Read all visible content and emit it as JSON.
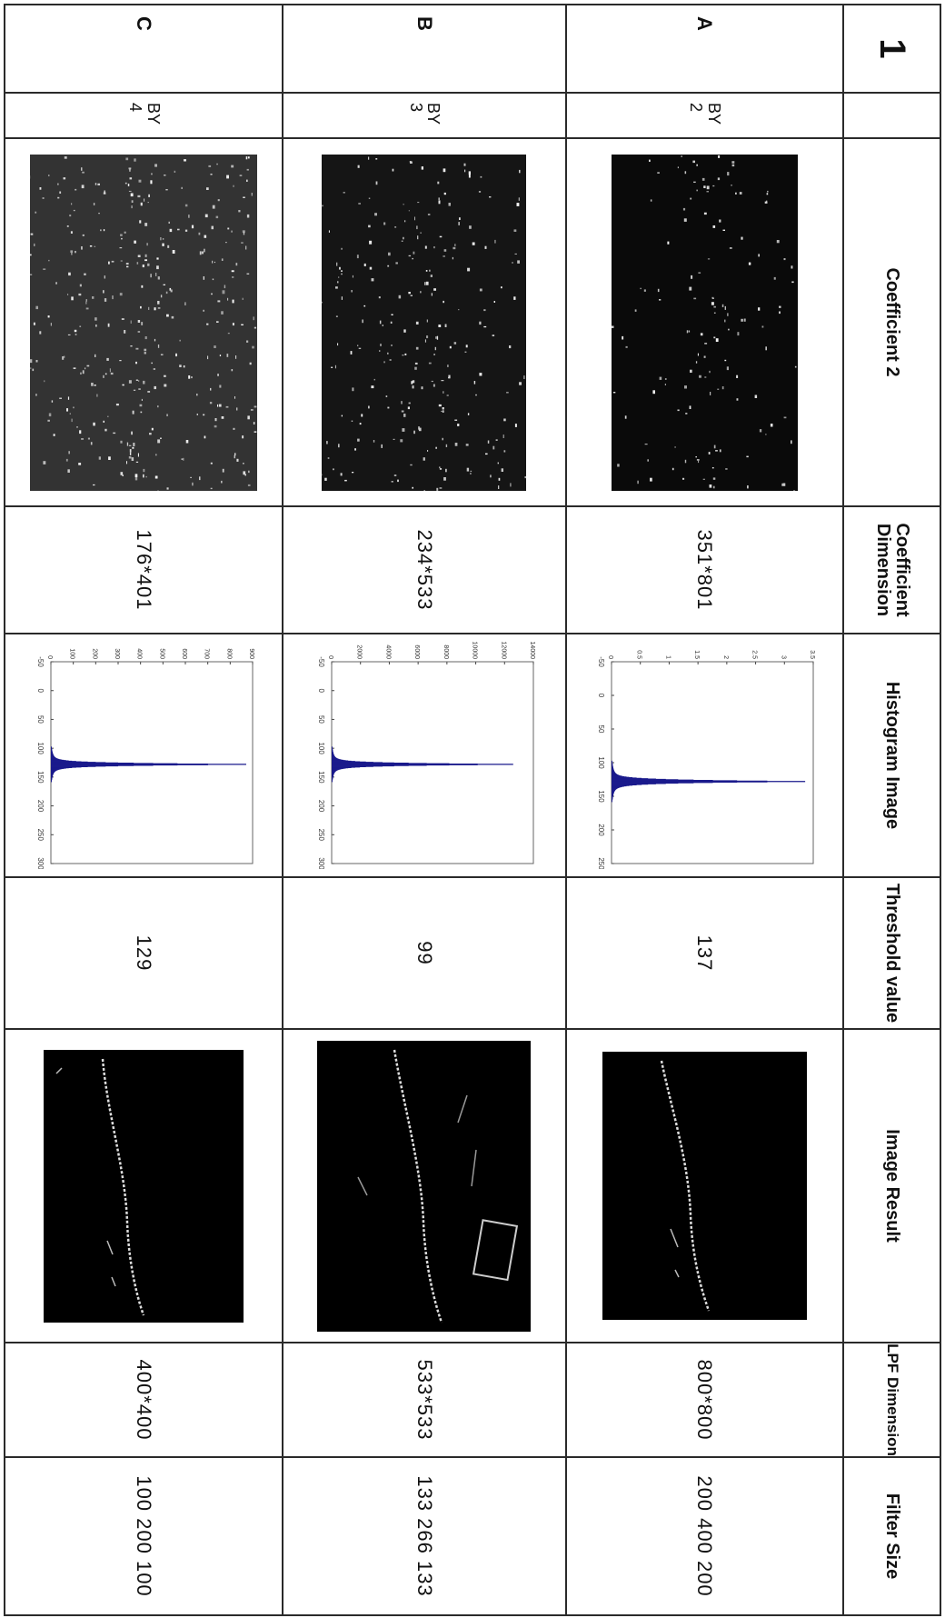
{
  "corner_mark": "1",
  "headers": {
    "coefficient": "Coefficient  2",
    "coef_dimension": "Coefficient Dimension",
    "histogram": "Histogram  Image",
    "threshold": "Threshold value",
    "image_result": "Image Result",
    "lpf_dimension": "LPF Dimension",
    "filter_size": "Filter Size"
  },
  "rows": [
    {
      "label": "A",
      "by": "BY",
      "factor": "2",
      "coef_dimension": "351*801",
      "threshold": "137",
      "lpf_dimension": "800*800",
      "filter_size": "200 400 200",
      "histogram": {
        "x_ticks": [
          "-50",
          "0",
          "50",
          "100",
          "150",
          "200",
          "250"
        ],
        "y_ticks": [
          "0",
          "0.5",
          "1",
          "1.5",
          "2",
          "2.5",
          "3",
          "3.5"
        ],
        "y_exp": "x 10^4",
        "peak": 3.2
      }
    },
    {
      "label": "B",
      "by": "BY",
      "factor": "3",
      "coef_dimension": "234*533",
      "threshold": "99",
      "lpf_dimension": "533*533",
      "filter_size": "133 266 133",
      "histogram": {
        "x_ticks": [
          "-50",
          "0",
          "50",
          "100",
          "150",
          "200",
          "250",
          "300"
        ],
        "y_ticks": [
          "0",
          "2000",
          "4000",
          "6000",
          "8000",
          "10000",
          "12000",
          "14000"
        ],
        "peak": 12000
      }
    },
    {
      "label": "C",
      "by": "BY",
      "factor": "4",
      "coef_dimension": "176*401",
      "threshold": "129",
      "lpf_dimension": "400*400",
      "filter_size": "100 200 100",
      "histogram": {
        "x_ticks": [
          "-50",
          "0",
          "50",
          "100",
          "150",
          "200",
          "250",
          "300"
        ],
        "y_ticks": [
          "0",
          "100",
          "200",
          "300",
          "400",
          "500",
          "600",
          "700",
          "800",
          "900"
        ],
        "peak": 830
      }
    }
  ],
  "colors": {
    "histogram_fill": "#1a1a8c",
    "border": "#2a2a2a"
  }
}
